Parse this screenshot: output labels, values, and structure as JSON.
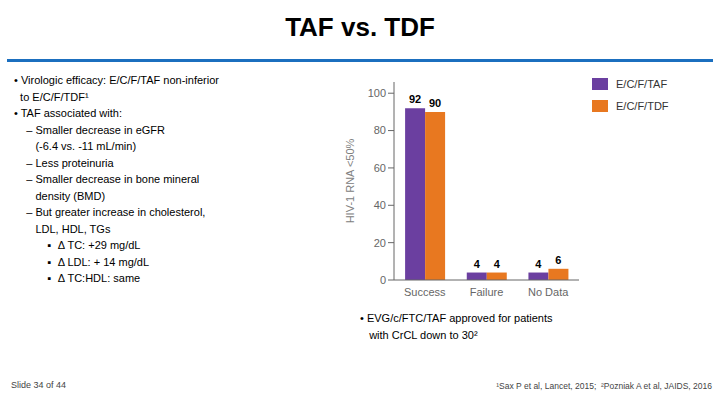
{
  "chart_data": {
    "type": "bar",
    "title": "TAF vs. TDF",
    "categories": [
      "Success",
      "Failure",
      "No Data"
    ],
    "series": [
      {
        "name": "E/C/F/TAF",
        "color": "#6B3FA0",
        "values": [
          92,
          4,
          4
        ]
      },
      {
        "name": "E/C/F/TDF",
        "color": "#E87820",
        "values": [
          90,
          4,
          6
        ]
      }
    ],
    "ylabel": "HIV-1 RNA <50%",
    "ylim": [
      0,
      106
    ],
    "yticks": [
      0,
      20,
      40,
      60,
      80,
      100
    ],
    "grid": false,
    "legend": "right",
    "data_labels": true,
    "annotations": [
      "• Virologic efficacy: E/C/F/TAF non-inferior\n  to E/C/F/TDF¹\n• TAF associated with:\n    – Smaller decrease in eGFR\n       (-6.4 vs. -11 mL/min)\n    – Less proteinuria\n    – Smaller decrease in bone mineral\n       density (BMD)\n    – But greater increase in cholesterol,\n       LDL, HDL, TGs\n           ▪  Δ TC: +29 mg/dL\n           ▪  Δ LDL: + 14 mg/dL\n           ▪  Δ TC:HDL: same",
      "• EVG/c/FTC/TAF approved for patients\n   with CrCL down to 30²",
      "Slide 34 of 44",
      "¹Sax P et al, Lancet, 2015;  ²Pozniak A et al, JAIDS, 2016"
    ]
  }
}
